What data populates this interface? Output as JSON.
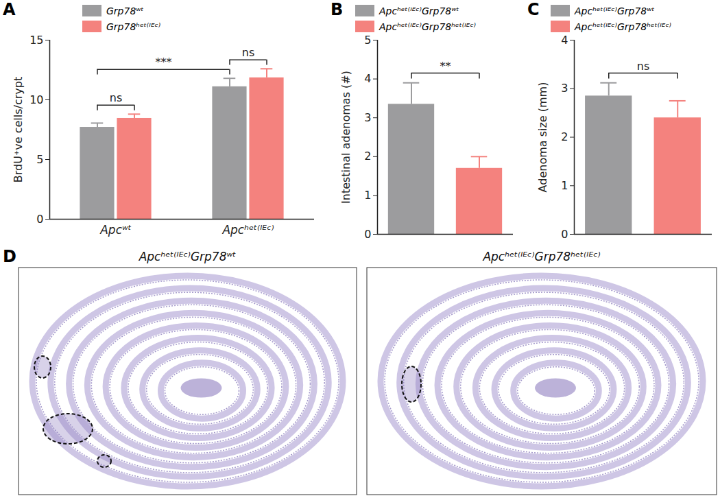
{
  "chart_data": [
    {
      "type": "bar",
      "panel_label": "A",
      "y_label": "BrdU⁺ve cells/crypt",
      "categories": [
        "Apcʷᵗ",
        "Apcʰᵉᵗ⁽ᴵᴱᶜ⁾"
      ],
      "series": [
        {
          "name": "Grp78ʷᵗ",
          "color": "#9c9c9e",
          "values": [
            7.7,
            11.1
          ],
          "errors": [
            0.35,
            0.7
          ]
        },
        {
          "name": "Grp78ʰᵉᵗ⁽ᴵᴱᶜ⁾",
          "color": "#f4827e",
          "values": [
            8.45,
            11.85
          ],
          "errors": [
            0.35,
            0.75
          ]
        }
      ],
      "ylim": [
        0,
        15
      ],
      "yticks": [
        0,
        5,
        10,
        15
      ],
      "grid": false,
      "legend": "top",
      "annotations": [
        {
          "label": "ns",
          "from": {
            "category": "Apcʷᵗ",
            "series": "Grp78ʷᵗ"
          },
          "to": {
            "category": "Apcʷᵗ",
            "series": "Grp78ʰᵉᵗ⁽ᴵᴱᶜ⁾"
          }
        },
        {
          "label": "ns",
          "from": {
            "category": "Apcʰᵉᵗ⁽ᴵᴱᶜ⁾",
            "series": "Grp78ʷᵗ"
          },
          "to": {
            "category": "Apcʰᵉᵗ⁽ᴵᴱᶜ⁾",
            "series": "Grp78ʰᵉᵗ⁽ᴵᴱᶜ⁾"
          }
        },
        {
          "label": "***",
          "from": {
            "category": "Apcʷᵗ",
            "series": "Grp78ʷᵗ"
          },
          "to": {
            "category": "Apcʰᵉᵗ⁽ᴵᴱᶜ⁾",
            "series": "Grp78ʷᵗ"
          }
        }
      ]
    },
    {
      "type": "bar",
      "panel_label": "B",
      "y_label": "Intestinal adenomas (#)",
      "categories": [
        "Apcʰᵉᵗ⁽ᴵᴱᶜ⁾Grp78ʷᵗ",
        "Apcʰᵉᵗ⁽ᴵᴱᶜ⁾Grp78ʰᵉᵗ⁽ᴵᴱᶜ⁾"
      ],
      "values": [
        3.35,
        1.7
      ],
      "errors": [
        0.55,
        0.3
      ],
      "colors": [
        "#9c9c9e",
        "#f4827e"
      ],
      "ylim": [
        0,
        5
      ],
      "yticks": [
        0,
        1,
        2,
        3,
        4,
        5
      ],
      "grid": false,
      "legend": "top",
      "tick_labels": "y",
      "annotations": [
        {
          "label": "**",
          "from": "Apcʰᵉᵗ⁽ᴵᴱᶜ⁾Grp78ʷᵗ",
          "to": "Apcʰᵉᵗ⁽ᴵᴱᶜ⁾Grp78ʰᵉᵗ⁽ᴵᴱᶜ⁾"
        }
      ]
    },
    {
      "type": "bar",
      "panel_label": "C",
      "y_label": "Adenoma size (mm)",
      "categories": [
        "Apcʰᵉᵗ⁽ᴵᴱᶜ⁾Grp78ʷᵗ",
        "Apcʰᵉᵗ⁽ᴵᴱᶜ⁾Grp78ʰᵉᵗ⁽ᴵᴱᶜ⁾"
      ],
      "values": [
        2.85,
        2.4
      ],
      "errors": [
        0.27,
        0.35
      ],
      "colors": [
        "#9c9c9e",
        "#f4827e"
      ],
      "ylim": [
        0,
        4
      ],
      "yticks": [
        0,
        1,
        2,
        3,
        4
      ],
      "grid": false,
      "legend": "top",
      "tick_labels": "y",
      "annotations": [
        {
          "label": "ns",
          "from": "Apcʰᵉᵗ⁽ᴵᴱᶜ⁾Grp78ʷᵗ",
          "to": "Apcʰᵉᵗ⁽ᴵᴱᶜ⁾Grp78ʰᵉᵗ⁽ᴵᴱᶜ⁾"
        }
      ]
    }
  ],
  "panel_d": {
    "panel_label": "D",
    "images": [
      {
        "title": "Apcʰᵉᵗ⁽ᴵᴱᶜ⁾Grp78ʷᵗ"
      },
      {
        "title": "Apcʰᵉᵗ⁽ᴵᴱᶜ⁾Grp78ʰᵉᵗ⁽ᴵᴱᶜ⁾"
      }
    ]
  }
}
